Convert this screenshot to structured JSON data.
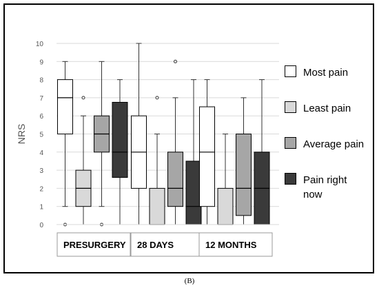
{
  "caption": "(B)",
  "chart_data": {
    "type": "boxplot",
    "ylabel": "NRS",
    "xlabel": "",
    "ylim": [
      0,
      10
    ],
    "yticks": [
      0,
      1,
      2,
      3,
      4,
      5,
      6,
      7,
      8,
      9,
      10
    ],
    "grid": true,
    "legend_position": "right",
    "categories": [
      "PRESURGERY",
      "28 DAYS",
      "12 MONTHS"
    ],
    "series": [
      {
        "name": "Most pain",
        "color": "#ffffff",
        "boxes": [
          {
            "whisker_low": 1,
            "q1": 5,
            "median": 7,
            "q3": 8,
            "whisker_high": 9,
            "outliers": [
              0
            ]
          },
          {
            "whisker_low": 0,
            "q1": 2,
            "median": 4,
            "q3": 6,
            "whisker_high": 10,
            "outliers": []
          },
          {
            "whisker_low": 0,
            "q1": 1,
            "median": 4,
            "q3": 6.5,
            "whisker_high": 8,
            "outliers": []
          }
        ]
      },
      {
        "name": "Least pain",
        "color": "#d9d9d9",
        "boxes": [
          {
            "whisker_low": 0,
            "q1": 1,
            "median": 2,
            "q3": 3,
            "whisker_high": 6,
            "outliers": [
              7
            ]
          },
          {
            "whisker_low": 0,
            "q1": 0,
            "median": 0,
            "q3": 2,
            "whisker_high": 5,
            "outliers": [
              7
            ]
          },
          {
            "whisker_low": 0,
            "q1": 0,
            "median": 0,
            "q3": 2,
            "whisker_high": 5,
            "outliers": []
          }
        ]
      },
      {
        "name": "Average pain",
        "color": "#a6a6a6",
        "boxes": [
          {
            "whisker_low": 1,
            "q1": 4,
            "median": 5,
            "q3": 6,
            "whisker_high": 9,
            "outliers": [
              0
            ]
          },
          {
            "whisker_low": 0,
            "q1": 1,
            "median": 2,
            "q3": 4,
            "whisker_high": 7,
            "outliers": [
              9
            ]
          },
          {
            "whisker_low": 0,
            "q1": 0.5,
            "median": 2,
            "q3": 5,
            "whisker_high": 7,
            "outliers": []
          }
        ]
      },
      {
        "name": "Pain right now",
        "color": "#3a3a3a",
        "boxes": [
          {
            "whisker_low": 0,
            "q1": 2.6,
            "median": 4,
            "q3": 6.75,
            "whisker_high": 8,
            "outliers": []
          },
          {
            "whisker_low": 0,
            "q1": 0,
            "median": 1,
            "q3": 3.5,
            "whisker_high": 8,
            "outliers": []
          },
          {
            "whisker_low": 0,
            "q1": 0,
            "median": 2,
            "q3": 4,
            "whisker_high": 8,
            "outliers": []
          }
        ]
      }
    ]
  }
}
